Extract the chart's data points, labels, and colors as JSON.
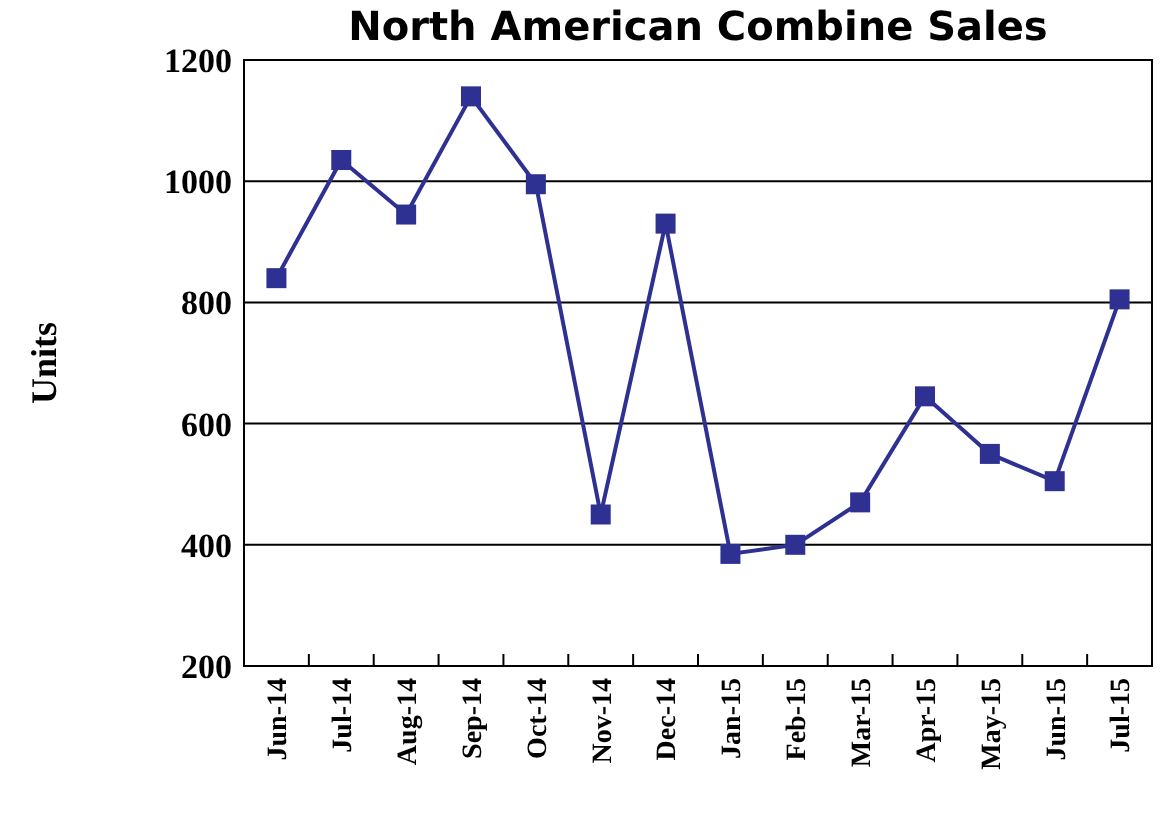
{
  "chart_data": {
    "type": "line",
    "title": "North American Combine Sales",
    "ylabel": "Units",
    "categories": [
      "Jun-14",
      "Jul-14",
      "Aug-14",
      "Sep-14",
      "Oct-14",
      "Nov-14",
      "Dec-14",
      "Jan-15",
      "Feb-15",
      "Mar-15",
      "Apr-15",
      "May-15",
      "Jun-15",
      "Jul-15"
    ],
    "series": [
      {
        "color": "#2e3192",
        "values": [
          840,
          1035,
          945,
          1140,
          995,
          450,
          930,
          385,
          400,
          470,
          645,
          550,
          505,
          805
        ]
      }
    ],
    "ylim": [
      200,
      1200
    ],
    "yticks": [
      200,
      400,
      600,
      800,
      1000,
      1200
    ],
    "grid": "y",
    "marker": "square",
    "line_style": "solid"
  }
}
